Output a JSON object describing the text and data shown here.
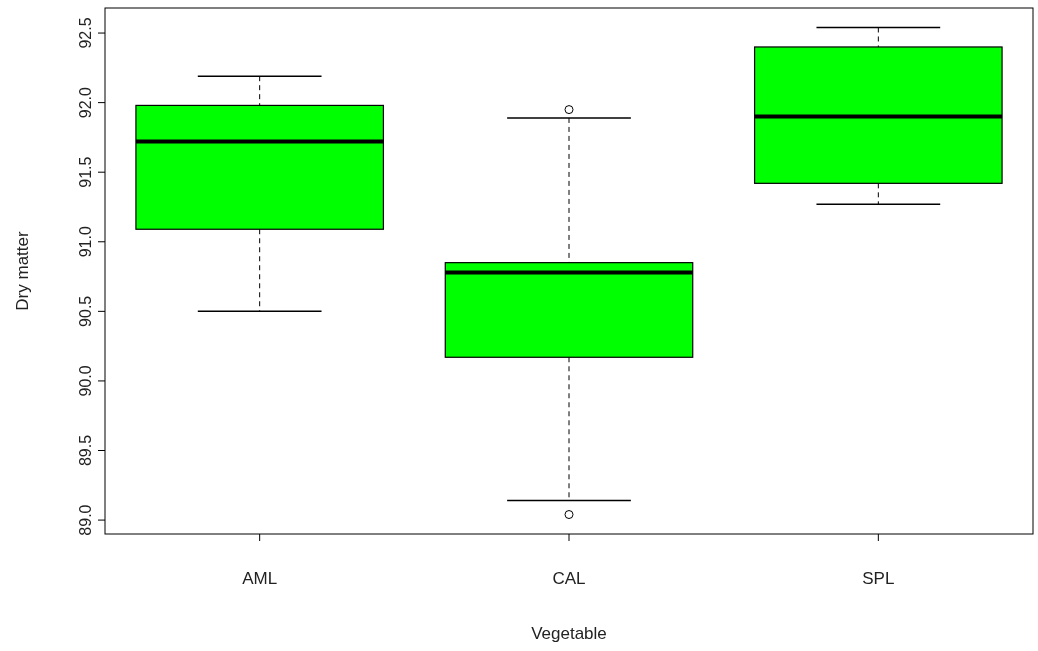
{
  "chart_data": {
    "type": "box",
    "xlabel": "Vegetable",
    "ylabel": "Dry matter",
    "categories": [
      "AML",
      "CAL",
      "SPL"
    ],
    "color": "#00ff00",
    "ylim": [
      88.9,
      92.68
    ],
    "yticks": [
      {
        "value": 89,
        "label": "89.0"
      },
      89.5,
      {
        "value": 90,
        "label": "90.0"
      },
      90.5,
      {
        "value": 91,
        "label": "91.0"
      },
      91.5,
      {
        "value": 92,
        "label": "92.0"
      },
      92.5
    ],
    "grid": false,
    "marker": "circle",
    "boxes": [
      {
        "low": 90.5,
        "q1": 91.09,
        "median": 91.72,
        "q3": 91.98,
        "high": 92.19
      },
      {
        "low": 89.14,
        "q1": 90.17,
        "median": 90.78,
        "q3": 90.85,
        "high": 91.89,
        "outliers": [
          91.95,
          89.04
        ]
      },
      {
        "low": 91.27,
        "q1": 91.42,
        "median": 91.9,
        "q3": 92.4,
        "high": 92.54
      }
    ]
  }
}
